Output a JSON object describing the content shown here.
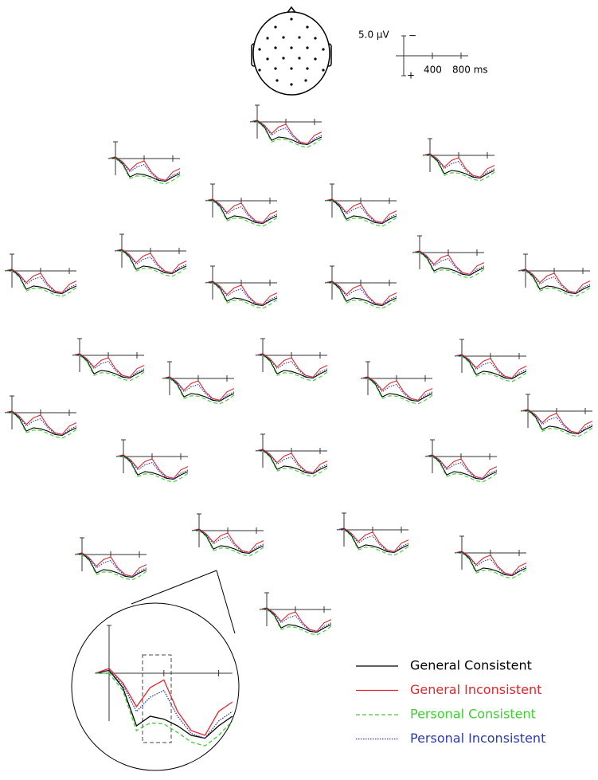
{
  "chart_data": {
    "type": "line",
    "x": [
      -100,
      0,
      100,
      200,
      300,
      400,
      500,
      600,
      700,
      800,
      900
    ],
    "xlim": [
      -100,
      900
    ],
    "xticks": [
      {
        "value": 400,
        "label": "400"
      },
      {
        "value": 800,
        "label": "800 ms"
      }
    ],
    "scale_bar": {
      "value": 5,
      "label": "5.0 μV",
      "negative_label": "−",
      "positive_label": "+"
    },
    "y_inverted": true,
    "series": [
      {
        "name": "General Consistent",
        "color": "#000000",
        "line_style": "solid",
        "values": [
          0,
          -0.3,
          1.5,
          5.5,
          4.5,
          4.8,
          5.5,
          6.5,
          6.8,
          5.5,
          4.5
        ]
      },
      {
        "name": "General Inconsistent",
        "color": "#e3262b",
        "line_style": "solid",
        "values": [
          0,
          -0.5,
          1,
          3.5,
          1.5,
          0.7,
          4,
          6,
          6.5,
          4,
          3
        ]
      },
      {
        "name": "Personal Consistent",
        "color": "#3ccf2f",
        "line_style": "dashed",
        "values": [
          0,
          0,
          1.8,
          6,
          5.2,
          5.3,
          6.2,
          7.2,
          7.6,
          6.5,
          5
        ]
      },
      {
        "name": "Personal Inconsistent",
        "color": "#2b3aa8",
        "line_style": "dotted",
        "values": [
          0,
          -0.3,
          1.2,
          4,
          2.5,
          1.8,
          4.5,
          6.3,
          6.8,
          5,
          4
        ]
      }
    ]
  }
}
